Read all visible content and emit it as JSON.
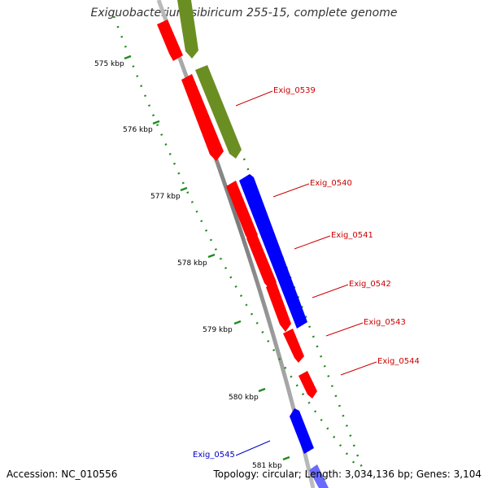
{
  "title": "Exiguobacterium sibiricum 255-15, complete genome",
  "footer": {
    "accession": "Accession: NC_010556",
    "summary": "Topology: circular; Length: 3,034,136 bp; Genes: 3,104"
  },
  "colors": {
    "forward_strand": "#ff0000",
    "reverse_strand": "#0000ff",
    "other_feature": "#6b8e23",
    "backbone": "#888888",
    "tick": "#228b22",
    "label_forward": "#cc0000",
    "label_reverse": "#0000cc"
  },
  "ticks": [
    {
      "label": "575 kbp"
    },
    {
      "label": "576 kbp"
    },
    {
      "label": "577 kbp"
    },
    {
      "label": "578 kbp"
    },
    {
      "label": "579 kbp"
    },
    {
      "label": "580 kbp"
    },
    {
      "label": "581 kbp"
    }
  ],
  "genes": [
    {
      "name": "Exig_0539",
      "strand": "forward"
    },
    {
      "name": "Exig_0540",
      "strand": "reverse"
    },
    {
      "name": "Exig_0541",
      "strand": "forward"
    },
    {
      "name": "Exig_0542",
      "strand": "forward"
    },
    {
      "name": "Exig_0543",
      "strand": "forward"
    },
    {
      "name": "Exig_0544",
      "strand": "forward"
    },
    {
      "name": "Exig_0545",
      "strand": "reverse"
    }
  ]
}
